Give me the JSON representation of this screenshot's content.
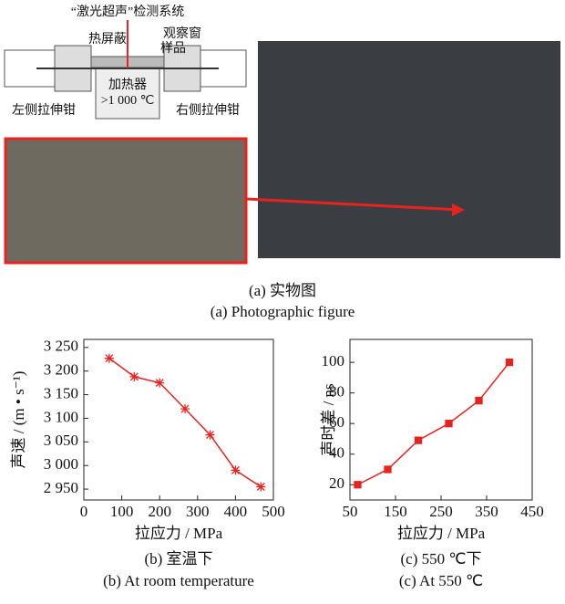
{
  "panel_a": {
    "labels": [
      "“激光超声”检测系统",
      "热屏蔽",
      "观察窗",
      "样品",
      "加热器",
      ">1 000 ℃",
      "左侧拉伸钳",
      "右侧拉伸钳"
    ],
    "caption_zh": "(a)  实物图",
    "caption_en": "(a)  Photographic figure"
  },
  "chart_data": [
    {
      "type": "line",
      "marker": "star",
      "color": "#e8231e",
      "xlabel": "拉应力 / MPa",
      "ylabel": "声速 / (m • s⁻¹)",
      "caption_zh": "(b)  室温下",
      "caption_en": "(b)  At room temperature",
      "x": [
        67,
        133,
        200,
        267,
        333,
        400,
        467
      ],
      "values": [
        3227,
        3188,
        3175,
        3120,
        3065,
        2990,
        2955
      ],
      "xlim": [
        0,
        500
      ],
      "xticks": [
        0,
        100,
        200,
        300,
        400,
        500
      ],
      "ylim": [
        2927,
        3267
      ],
      "yticks": [
        {
          "value": 2950,
          "label": "2 950"
        },
        {
          "value": 3000,
          "label": "3 000"
        },
        {
          "value": 3050,
          "label": "3 050"
        },
        {
          "value": 3100,
          "label": "3 100"
        },
        {
          "value": 3150,
          "label": "3 150"
        },
        {
          "value": 3200,
          "label": "3 200"
        },
        {
          "value": 3250,
          "label": "3 250"
        }
      ]
    },
    {
      "type": "line",
      "marker": "square",
      "color": "#e8231e",
      "xlabel": "拉应力 / MPa",
      "ylabel": "声时差 / ns",
      "caption_zh": "(c)  550 ℃下",
      "caption_en": "(c)  At 550 ℃",
      "x": [
        67,
        133,
        200,
        267,
        333,
        400
      ],
      "values": [
        20,
        30,
        49,
        60,
        75,
        100
      ],
      "xlim": [
        50,
        450
      ],
      "xticks": [
        50,
        150,
        250,
        350,
        450
      ],
      "ylim": [
        10,
        115
      ],
      "yticks": [
        20,
        40,
        60,
        80,
        100
      ]
    }
  ]
}
